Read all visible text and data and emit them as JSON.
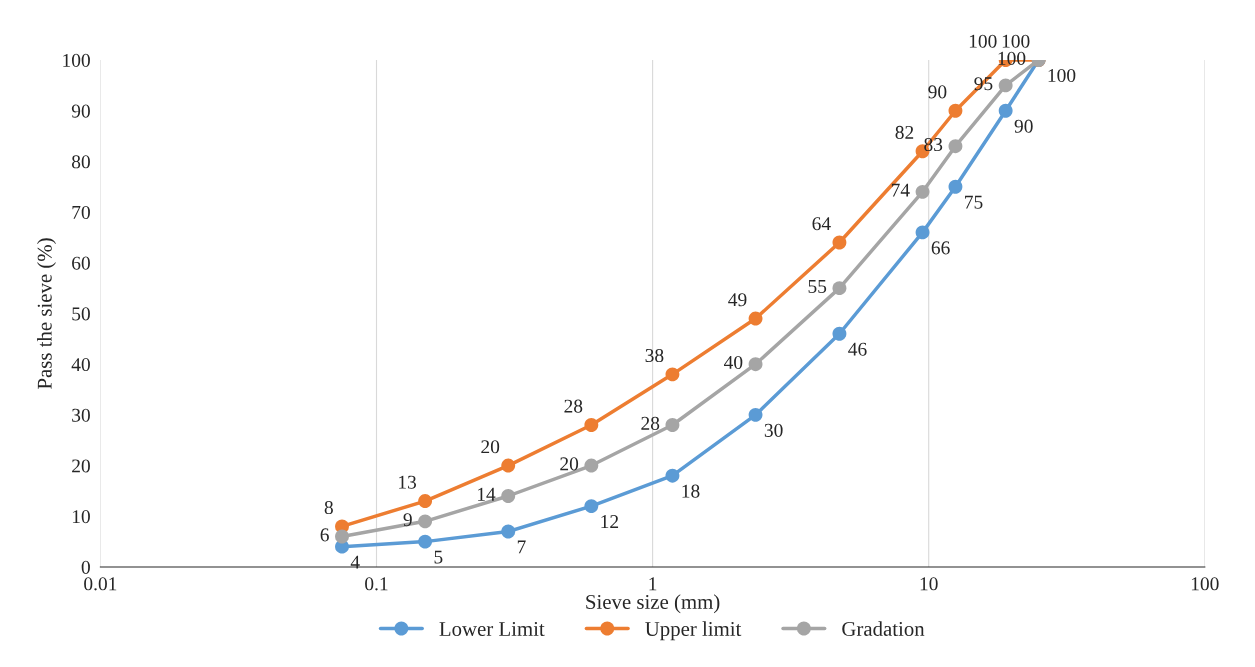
{
  "chart_data": {
    "type": "line",
    "xlabel": "Sieve size (mm)",
    "ylabel": "Pass the sieve (%)",
    "x": [
      0.075,
      0.15,
      0.3,
      0.6,
      1.18,
      2.36,
      4.75,
      9.5,
      12.5,
      19,
      25
    ],
    "series": [
      {
        "name": "Lower Limit",
        "color": "#5b9bd5",
        "values": [
          4,
          5,
          7,
          12,
          18,
          30,
          46,
          66,
          75,
          90,
          100
        ]
      },
      {
        "name": "Upper limit",
        "color": "#ed7d31",
        "values": [
          8,
          13,
          20,
          28,
          38,
          49,
          64,
          82,
          90,
          100,
          100
        ]
      },
      {
        "name": "Gradation",
        "color": "#a5a5a5",
        "values": [
          6,
          9,
          14,
          20,
          28,
          40,
          55,
          74,
          83,
          95,
          100
        ]
      }
    ],
    "log": "x",
    "xlim": [
      0.01,
      100
    ],
    "xticks": [
      0.01,
      0.1,
      1,
      10,
      100
    ],
    "ylim": [
      0,
      100
    ],
    "yticks": [
      0,
      10,
      20,
      30,
      40,
      50,
      60,
      70,
      80,
      90,
      100
    ],
    "grid": "x",
    "legend": "bottom",
    "marker": "circle",
    "line_style": "solid",
    "data_labels": true
  }
}
